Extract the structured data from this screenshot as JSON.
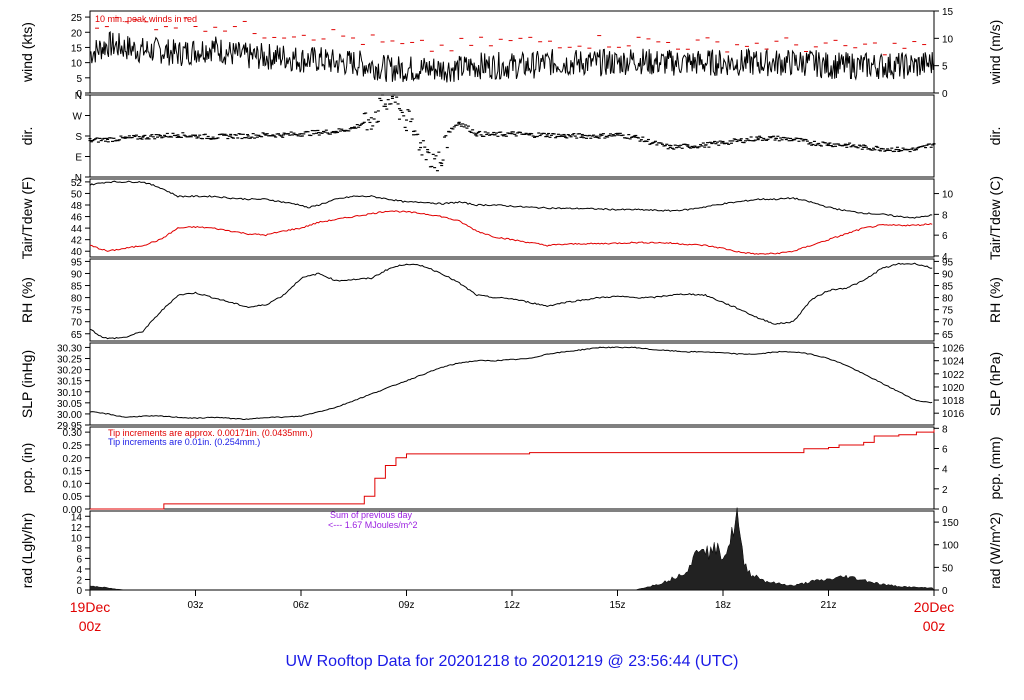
{
  "footer": {
    "title": "UW Rooftop Data for 20201218  to  20201219 @ 23:56:44  (UTC)"
  },
  "colors": {
    "black": "#000000",
    "red": "#e00000",
    "blue": "#1a1ae6",
    "purple": "#9a1ee0"
  },
  "x_axis": {
    "hours": [
      0,
      3,
      6,
      9,
      12,
      15,
      18,
      21,
      24
    ],
    "labels": [
      "",
      "03z",
      "06z",
      "09z",
      "12z",
      "15z",
      "18z",
      "21z",
      ""
    ],
    "start": {
      "date": "19Dec",
      "time": "00z"
    },
    "end": {
      "date": "20Dec",
      "time": "00z"
    }
  },
  "chart_data": [
    {
      "id": "wind",
      "type": "line",
      "ylabel_left": "wind (kts)",
      "ylabel_right": "wind (m/s)",
      "ylim": [
        0,
        27
      ],
      "yticks": [
        0,
        5,
        10,
        15,
        20,
        25
      ],
      "right_ylim": [
        0,
        15
      ],
      "right_yticks": [
        0,
        5,
        10,
        15
      ],
      "annotations": [
        {
          "text": "10 min. peak winds in red",
          "color": "#e00000"
        }
      ],
      "series": [
        {
          "color": "#000000",
          "x": [
            0,
            0.5,
            1,
            1.5,
            2,
            2.5,
            3,
            3.5,
            4,
            4.5,
            5,
            5.5,
            6,
            6.5,
            7,
            7.5,
            8,
            8.5,
            9,
            9.5,
            10,
            10.5,
            11,
            11.5,
            12,
            12.5,
            13,
            13.5,
            14,
            14.5,
            15,
            15.5,
            16,
            16.5,
            17,
            17.5,
            18,
            18.5,
            19,
            19.5,
            20,
            20.5,
            21,
            21.5,
            22,
            22.5,
            23,
            23.5,
            24
          ],
          "y": [
            13,
            16,
            15,
            14,
            14,
            13,
            14,
            15,
            13,
            12,
            12,
            12,
            11,
            11,
            10,
            10,
            9,
            8,
            8,
            8,
            8,
            8,
            9,
            9,
            9,
            9,
            10,
            10,
            10,
            10,
            10,
            11,
            10,
            10,
            10,
            10,
            10,
            10,
            10,
            10,
            10,
            10,
            9,
            9,
            9,
            9,
            9,
            9,
            10
          ]
        },
        {
          "style": "dash",
          "color": "#e00000",
          "x": [
            0,
            1,
            2,
            3,
            4,
            5,
            6,
            7,
            8,
            9,
            10,
            11,
            12,
            13,
            14,
            15,
            16,
            17,
            18,
            19,
            20,
            21,
            22,
            23,
            24
          ],
          "y": [
            24,
            23,
            23,
            23,
            22,
            20,
            20,
            19,
            17,
            15,
            15,
            16,
            17,
            17,
            17,
            17,
            17,
            16,
            16,
            16,
            16,
            15,
            15,
            15,
            16
          ]
        }
      ]
    },
    {
      "id": "dir",
      "type": "scatter",
      "ylabel_left": "dir.",
      "ylabel_right": "dir.",
      "ylim": [
        0,
        360
      ],
      "yticks": [
        0,
        90,
        180,
        270,
        360
      ],
      "ytick_labels": [
        "N",
        "E",
        "S",
        "W",
        "N"
      ],
      "series": [
        {
          "color": "#000000",
          "x": [
            0,
            0.5,
            1,
            1.5,
            2,
            2.5,
            3,
            3.5,
            4,
            4.5,
            5,
            5.5,
            6,
            6.5,
            7,
            7.5,
            7.8,
            8,
            8.2,
            8.4,
            8.6,
            8.8,
            9,
            9.2,
            9.4,
            9.6,
            9.8,
            10,
            10.2,
            10.5,
            11,
            11.5,
            12,
            12.5,
            13,
            13.5,
            14,
            14.5,
            15,
            15.5,
            16,
            16.5,
            17,
            17.5,
            18,
            18.5,
            19,
            19.5,
            20,
            20.5,
            21,
            21.5,
            22,
            22.5,
            23,
            23.5,
            24
          ],
          "y": [
            160,
            165,
            170,
            175,
            180,
            185,
            180,
            175,
            180,
            180,
            185,
            185,
            190,
            195,
            200,
            215,
            240,
            260,
            290,
            320,
            345,
            300,
            250,
            200,
            150,
            110,
            80,
            60,
            200,
            240,
            190,
            185,
            190,
            185,
            185,
            180,
            180,
            180,
            185,
            175,
            150,
            130,
            135,
            140,
            150,
            160,
            170,
            170,
            165,
            150,
            145,
            140,
            130,
            125,
            120,
            120,
            145
          ]
        }
      ]
    },
    {
      "id": "temp",
      "type": "line",
      "ylabel_left": "Tair/Tdew (F)",
      "ylabel_right": "Tair/Tdew (C)",
      "ylim": [
        39,
        52.5
      ],
      "yticks": [
        40,
        42,
        44,
        46,
        48,
        50,
        52
      ],
      "right_ylim": [
        3.9,
        11.4
      ],
      "right_yticks": [
        4,
        6,
        8,
        10
      ],
      "series": [
        {
          "color": "#000000",
          "x": [
            0,
            0.5,
            1,
            1.5,
            2,
            2.5,
            3,
            3.5,
            4,
            4.5,
            5,
            5.5,
            6,
            6.2,
            6.5,
            7,
            7.5,
            8,
            8.5,
            9,
            9.5,
            10,
            10.5,
            11,
            11.5,
            12,
            12.5,
            13,
            13.5,
            14,
            14.5,
            15,
            15.5,
            16,
            16.5,
            17,
            17.5,
            18,
            18.5,
            19,
            19.5,
            20,
            20.5,
            21,
            21.5,
            22,
            22.5,
            23,
            23.5,
            24
          ],
          "y": [
            51.5,
            52,
            52,
            52,
            51,
            49.5,
            49.5,
            49.5,
            49.2,
            49,
            49,
            48.5,
            48,
            47.5,
            48,
            49,
            49.5,
            49.5,
            49,
            48.5,
            48.5,
            48.2,
            48.5,
            48,
            48,
            47.8,
            47.6,
            47.5,
            47.4,
            47.4,
            47.3,
            47.2,
            47.2,
            47.1,
            47,
            47.2,
            47.7,
            48.2,
            48.6,
            49,
            49,
            49.2,
            48.5,
            47.6,
            47,
            46.6,
            46.4,
            46,
            45.8,
            46.3
          ]
        },
        {
          "color": "#e00000",
          "x": [
            0,
            0.5,
            1,
            1.5,
            2,
            2.5,
            3,
            3.5,
            4,
            4.5,
            5,
            5.5,
            6,
            6.5,
            7,
            7.5,
            8,
            8.5,
            9,
            9.5,
            10,
            10.5,
            11,
            11.5,
            12,
            12.5,
            13,
            13.5,
            14,
            14.5,
            15,
            15.5,
            16,
            16.5,
            17,
            17.5,
            18,
            18.5,
            19,
            19.5,
            20,
            20.5,
            21,
            21.5,
            22,
            22.5,
            23,
            23.5,
            24
          ],
          "y": [
            41,
            40,
            40.5,
            41,
            42,
            44,
            44.2,
            44,
            43.5,
            43,
            42.8,
            43.5,
            44,
            45,
            45.5,
            46,
            46.5,
            47,
            46.8,
            46.5,
            46,
            45.2,
            43.5,
            42.5,
            42,
            41.5,
            41,
            41.2,
            41.3,
            41.3,
            41.4,
            41.5,
            41.5,
            41.4,
            41.2,
            41,
            40.5,
            39.8,
            39.5,
            39.6,
            40,
            41,
            42,
            43,
            44,
            44.5,
            44.5,
            44.5,
            44.8
          ]
        }
      ]
    },
    {
      "id": "rh",
      "type": "line",
      "ylabel_left": "RH (%)",
      "ylabel_right": "RH (%)",
      "ylim": [
        62,
        96
      ],
      "yticks": [
        65,
        70,
        75,
        80,
        85,
        90,
        95
      ],
      "right_yticks": [
        65,
        70,
        75,
        80,
        85,
        90,
        95
      ],
      "series": [
        {
          "color": "#000000",
          "x": [
            0,
            0.3,
            0.5,
            1,
            1.5,
            2,
            2.5,
            3,
            3.5,
            4,
            4.5,
            5,
            5.5,
            6,
            6.5,
            7,
            7.5,
            8,
            8.5,
            9,
            9.5,
            10,
            10.5,
            11,
            11.5,
            12,
            12.5,
            13,
            13.5,
            14,
            14.5,
            15,
            15.5,
            16,
            16.5,
            17,
            17.5,
            18,
            18.5,
            19,
            19.5,
            20,
            20.5,
            21,
            21.5,
            22,
            22.5,
            23,
            23.5,
            24
          ],
          "y": [
            67,
            64,
            63,
            63.5,
            66,
            74,
            81,
            82,
            80,
            78,
            76,
            77,
            81,
            88,
            90,
            87,
            87.5,
            88,
            92,
            94,
            93,
            90,
            86,
            81,
            80,
            79.5,
            78,
            76.5,
            78,
            79,
            80,
            80.5,
            80,
            80,
            81,
            81.5,
            81,
            78,
            75,
            71.5,
            69,
            70,
            79,
            83,
            84,
            87,
            92,
            94,
            94,
            92
          ]
        }
      ]
    },
    {
      "id": "slp",
      "type": "line",
      "ylabel_left": "SLP (inHg)",
      "ylabel_right": "SLP (hPa)",
      "ylim": [
        29.95,
        30.32
      ],
      "yticks": [
        29.95,
        30.0,
        30.05,
        30.1,
        30.15,
        30.2,
        30.25,
        30.3
      ],
      "ytick_labels": [
        "29.95",
        "30.00",
        "30.05",
        "30.10",
        "30.15",
        "30.20",
        "30.25",
        "30.30"
      ],
      "right_ylim": [
        1014.2,
        1026.7
      ],
      "right_yticks": [
        1016,
        1018,
        1020,
        1022,
        1024,
        1026
      ],
      "series": [
        {
          "color": "#000000",
          "x": [
            0,
            0.5,
            1,
            1.5,
            2,
            2.5,
            3,
            3.5,
            4,
            4.5,
            5,
            5.5,
            6,
            6.5,
            7,
            7.5,
            8,
            8.5,
            9,
            9.5,
            10,
            10.5,
            11,
            11.5,
            12,
            12.5,
            13,
            13.5,
            14,
            14.5,
            15,
            15.5,
            16,
            16.5,
            17,
            17.5,
            18,
            18.5,
            19,
            19.5,
            20,
            20.5,
            21,
            21.5,
            22,
            22.5,
            23,
            23.5,
            24
          ],
          "y": [
            30.01,
            30.0,
            29.985,
            29.99,
            29.99,
            29.985,
            29.98,
            29.985,
            29.98,
            29.975,
            29.985,
            29.985,
            29.99,
            30.01,
            30.03,
            30.06,
            30.09,
            30.12,
            30.15,
            30.18,
            30.21,
            30.23,
            30.24,
            30.24,
            30.245,
            30.25,
            30.27,
            30.28,
            30.29,
            30.3,
            30.3,
            30.3,
            30.29,
            30.285,
            30.28,
            30.28,
            30.275,
            30.27,
            30.27,
            30.28,
            30.28,
            30.27,
            30.25,
            30.22,
            30.18,
            30.14,
            30.1,
            30.06,
            30.05
          ]
        }
      ]
    },
    {
      "id": "pcp",
      "type": "line",
      "ylabel_left": "pcp. (in)",
      "ylabel_right": "pcp. (mm)",
      "ylim": [
        0,
        0.32
      ],
      "yticks": [
        0,
        0.05,
        0.1,
        0.15,
        0.2,
        0.25,
        0.3
      ],
      "ytick_labels": [
        "0.00",
        "0.05",
        "0.10",
        "0.15",
        "0.20",
        "0.25",
        "0.30"
      ],
      "right_ylim": [
        0,
        8.13
      ],
      "right_yticks": [
        0,
        2,
        4,
        6,
        8
      ],
      "annotations": [
        {
          "text": "Tip increments are approx. 0.00171in. (0.0435mm.)",
          "color": "#e00000"
        },
        {
          "text": "Tip increments are 0.01in. (0.254mm.)",
          "color": "#1a1ae6"
        }
      ],
      "series": [
        {
          "color": "#e00000",
          "x": [
            0,
            2,
            2.1,
            6.5,
            7.5,
            7.8,
            8.1,
            8.4,
            8.7,
            9,
            12,
            12.5,
            20,
            20.3,
            21,
            21.3,
            22,
            22.3,
            23,
            23.5,
            24
          ],
          "y": [
            0,
            0,
            0.02,
            0.02,
            0.02,
            0.05,
            0.12,
            0.17,
            0.2,
            0.215,
            0.215,
            0.22,
            0.22,
            0.235,
            0.24,
            0.25,
            0.26,
            0.285,
            0.29,
            0.3,
            0.31
          ]
        }
      ]
    },
    {
      "id": "rad",
      "type": "area",
      "ylabel_left": "rad (Lgly/hr)",
      "ylabel_right": "rad (W/m^2)",
      "ylim": [
        0,
        15
      ],
      "yticks": [
        0,
        2,
        4,
        6,
        8,
        10,
        12,
        14
      ],
      "right_ylim": [
        0,
        174.5
      ],
      "right_yticks": [
        0,
        50,
        100,
        150
      ],
      "annotations": [
        {
          "text": "Sum of previous day",
          "color": "#9a1ee0"
        },
        {
          "text": "<--- 1.67 MJoules/m^2",
          "color": "#9a1ee0"
        }
      ],
      "series": [
        {
          "color": "#000000",
          "x": [
            0,
            0.3,
            0.7,
            1,
            15.5,
            15.8,
            16.2,
            16.5,
            16.8,
            17,
            17.2,
            17.4,
            17.6,
            17.8,
            18,
            18.2,
            18.4,
            18.5,
            18.6,
            18.8,
            19,
            19.2,
            19.5,
            19.8,
            20,
            20.5,
            21,
            21.5,
            22,
            22.5,
            23,
            23.5,
            24
          ],
          "y": [
            0.8,
            0.6,
            0.2,
            0,
            0,
            0.5,
            1.2,
            2,
            3,
            4,
            6.5,
            9,
            7,
            8,
            6.5,
            9,
            14.5,
            9,
            5,
            3,
            2.5,
            1.7,
            1.3,
            1,
            0.8,
            1.6,
            2,
            2.6,
            1.9,
            1.1,
            0.7,
            0.5,
            0.4
          ]
        }
      ]
    }
  ]
}
